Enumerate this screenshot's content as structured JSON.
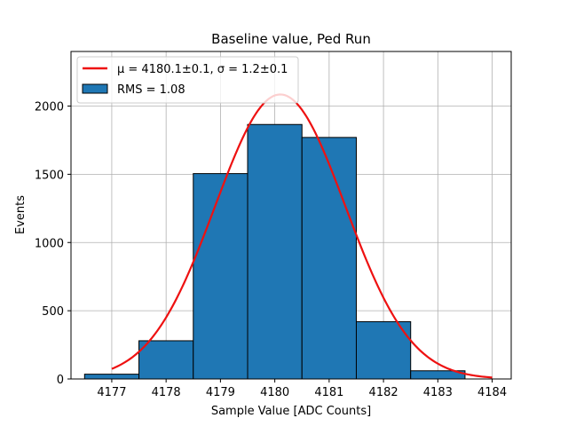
{
  "chart_data": {
    "type": "bar",
    "title": "Baseline value, Ped Run",
    "xlabel": "Sample Value [ADC Counts]",
    "ylabel": "Events",
    "xlim": [
      4176.25,
      4184.35
    ],
    "ylim": [
      0,
      2400
    ],
    "xticks": [
      4177,
      4178,
      4179,
      4180,
      4181,
      4182,
      4183,
      4184
    ],
    "yticks": [
      0,
      500,
      1000,
      1500,
      2000
    ],
    "grid": true,
    "legend_position": "top-left",
    "bins": [
      {
        "x0": 4176.5,
        "x1": 4177.5,
        "value": 35
      },
      {
        "x0": 4177.5,
        "x1": 4178.5,
        "value": 280
      },
      {
        "x0": 4178.5,
        "x1": 4179.5,
        "value": 1505
      },
      {
        "x0": 4179.5,
        "x1": 4180.5,
        "value": 1865
      },
      {
        "x0": 4180.5,
        "x1": 4181.5,
        "value": 1770
      },
      {
        "x0": 4181.5,
        "x1": 4182.5,
        "value": 420
      },
      {
        "x0": 4182.5,
        "x1": 4183.5,
        "value": 60
      }
    ],
    "fit": {
      "type": "gaussian",
      "mu": 4180.1,
      "sigma": 1.2,
      "amplitude": 2085,
      "x_range": [
        4177,
        4184
      ]
    },
    "legend": {
      "fit_label_prefix": "μ = 4180.1±0.1, ",
      "fit_label_suffix": "σ = 1.2±0.1",
      "hist_label": "RMS = 1.08"
    },
    "colors": {
      "bar_fill": "#1f77b4",
      "bar_edge": "#000000",
      "fit_line": "#ee1111",
      "grid": "#b0b0b0"
    }
  }
}
